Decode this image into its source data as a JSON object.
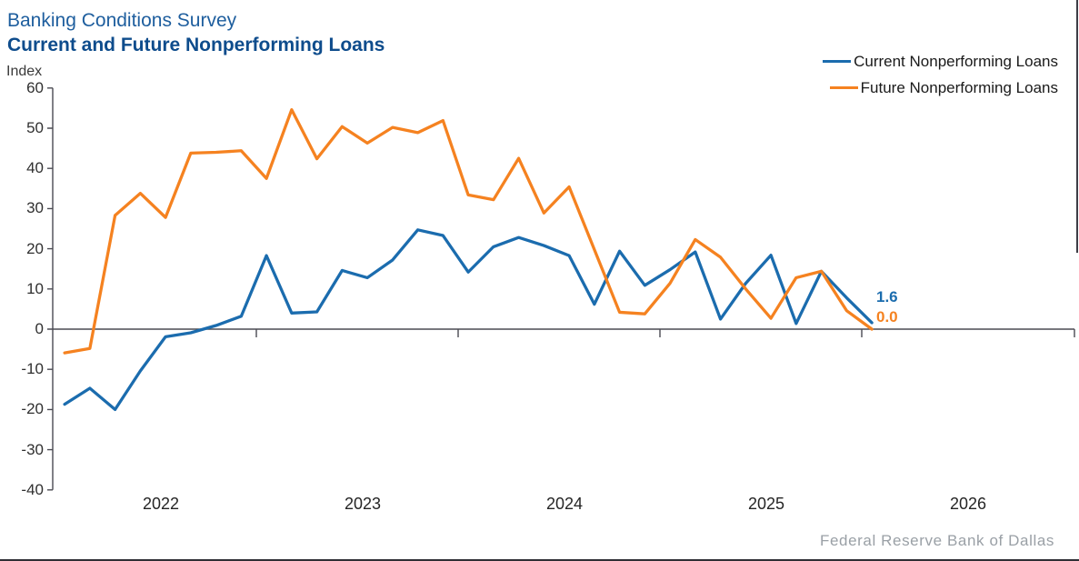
{
  "header": {
    "survey_title": "Banking Conditions Survey",
    "chart_title": "Current and Future Nonperforming Loans",
    "axis_unit_label": "Index"
  },
  "legend": [
    {
      "label": "Current Nonperforming Loans",
      "color": "#1B6CAE"
    },
    {
      "label": "Future Nonperforming Loans",
      "color": "#F58220"
    }
  ],
  "footer": {
    "source_label": "Federal Reserve Bank of Dallas"
  },
  "colors": {
    "current_line": "#1B6CAE",
    "future_line": "#F58220",
    "axis": "#4a4a52",
    "title_regular": "#1E5E9E",
    "title_bold": "#0E4C8C"
  },
  "chart_data": {
    "type": "line",
    "title": "Current and Future Nonperforming Loans",
    "ylabel": "Index",
    "ylim": [
      -40,
      60
    ],
    "ytick_step": 10,
    "yticks": [
      60,
      50,
      40,
      30,
      20,
      10,
      0,
      -10,
      -20,
      -30,
      -40
    ],
    "xlim": [
      2022,
      2027.05
    ],
    "xticks_years": [
      2022,
      2023,
      2024,
      2025,
      2026
    ],
    "grid": false,
    "zero_baseline": true,
    "legend_position": "top-right",
    "x": [
      2022.05,
      2022.175,
      2022.3,
      2022.425,
      2022.55,
      2022.675,
      2022.8,
      2022.925,
      2023.05,
      2023.175,
      2023.3,
      2023.425,
      2023.55,
      2023.675,
      2023.8,
      2023.925,
      2024.05,
      2024.175,
      2024.3,
      2024.425,
      2024.55,
      2024.675,
      2024.8,
      2024.925,
      2025.05,
      2025.175,
      2025.3,
      2025.425,
      2025.55,
      2025.675,
      2025.8,
      2025.925,
      2026.05
    ],
    "series": [
      {
        "name": "Current Nonperforming Loans",
        "color": "#1B6CAE",
        "end_label": "1.6",
        "values": [
          -18.7,
          -14.7,
          -20.0,
          -10.4,
          -1.9,
          -0.9,
          0.9,
          3.2,
          18.3,
          4.0,
          4.3,
          14.6,
          12.8,
          17.2,
          24.7,
          23.3,
          14.2,
          20.5,
          22.8,
          20.8,
          18.3,
          6.2,
          19.4,
          10.9,
          14.8,
          19.2,
          2.5,
          11.4,
          18.4,
          1.4,
          14.4,
          7.8,
          1.6
        ]
      },
      {
        "name": "Future Nonperforming Loans",
        "color": "#F58220",
        "end_label": "0.0",
        "values": [
          -5.9,
          -4.8,
          28.3,
          33.8,
          27.8,
          43.8,
          44.0,
          44.4,
          37.5,
          54.6,
          42.4,
          50.4,
          46.3,
          50.2,
          48.9,
          51.9,
          33.4,
          32.2,
          42.5,
          28.9,
          35.4,
          19.8,
          4.2,
          3.8,
          11.4,
          22.3,
          17.9,
          10.0,
          2.7,
          12.8,
          14.4,
          4.6,
          0.0
        ]
      }
    ]
  }
}
